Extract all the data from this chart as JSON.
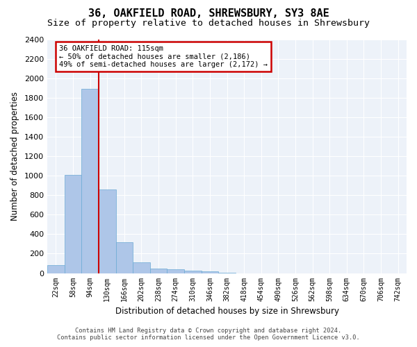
{
  "title_line1": "36, OAKFIELD ROAD, SHREWSBURY, SY3 8AE",
  "title_line2": "Size of property relative to detached houses in Shrewsbury",
  "xlabel": "Distribution of detached houses by size in Shrewsbury",
  "ylabel": "Number of detached properties",
  "annotation_line1": "36 OAKFIELD ROAD: 115sqm",
  "annotation_line2": "← 50% of detached houses are smaller (2,186)",
  "annotation_line3": "49% of semi-detached houses are larger (2,172) →",
  "footer_line1": "Contains HM Land Registry data © Crown copyright and database right 2024.",
  "footer_line2": "Contains public sector information licensed under the Open Government Licence v3.0.",
  "bin_labels": [
    "22sqm",
    "58sqm",
    "94sqm",
    "130sqm",
    "166sqm",
    "202sqm",
    "238sqm",
    "274sqm",
    "310sqm",
    "346sqm",
    "382sqm",
    "418sqm",
    "454sqm",
    "490sqm",
    "526sqm",
    "562sqm",
    "598sqm",
    "634sqm",
    "670sqm",
    "706sqm",
    "742sqm"
  ],
  "bar_values": [
    80,
    1010,
    1890,
    860,
    315,
    110,
    50,
    40,
    22,
    15,
    5,
    0,
    0,
    0,
    0,
    0,
    0,
    0,
    0,
    0,
    0
  ],
  "bar_color": "#aec6e8",
  "bar_edge_color": "#6aaad4",
  "red_line_color": "#cc0000",
  "annotation_box_edgecolor": "#cc0000",
  "ylim": [
    0,
    2400
  ],
  "yticks": [
    0,
    200,
    400,
    600,
    800,
    1000,
    1200,
    1400,
    1600,
    1800,
    2000,
    2200,
    2400
  ],
  "plot_bg_color": "#edf2f9",
  "title_fontsize": 11,
  "subtitle_fontsize": 9.5,
  "red_line_xindex": 2.5
}
